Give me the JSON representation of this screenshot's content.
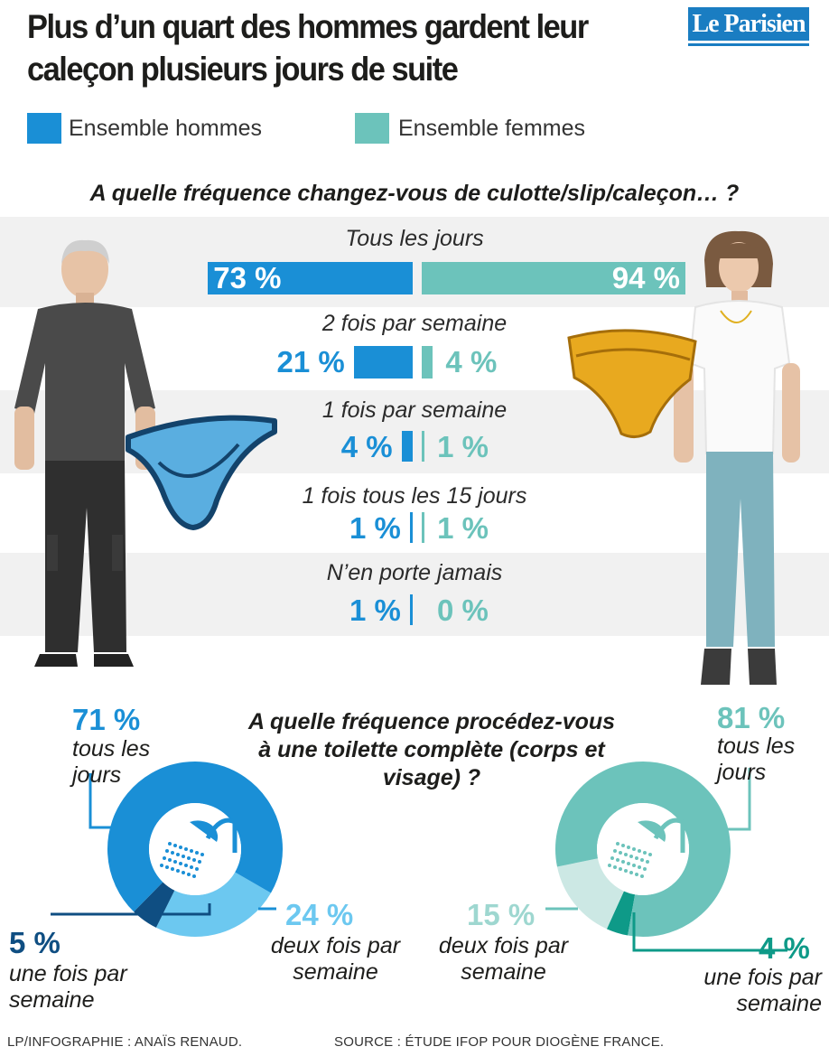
{
  "title": "Plus d’un quart des hommes gardent leur caleçon plusieurs jours de suite",
  "logo": "Le Parisien",
  "colors": {
    "men": "#1a8fd6",
    "women": "#6cc3bb",
    "men_dark": "#0f4e82",
    "men_light": "#6cc8f0",
    "women_light": "#cce8e4",
    "women_dark": "#0e9a88"
  },
  "legend": {
    "men": "Ensemble hommes",
    "women": "Ensemble femmes"
  },
  "illustrations": {
    "left": "man-figure-icon",
    "right": "woman-figure-icon",
    "brief": "briefs-icon",
    "panties": "panties-icon",
    "shower": "shower-icon"
  },
  "chart_data": [
    {
      "type": "bar",
      "title": "A quelle fréquence changez-vous de culotte/slip/caleçon… ?",
      "categories": [
        "Tous les jours",
        "2 fois par semaine",
        "1 fois par semaine",
        "1 fois tous les 15 jours",
        "N’en porte jamais"
      ],
      "series": [
        {
          "name": "Ensemble hommes",
          "values": [
            73,
            21,
            4,
            1,
            1
          ],
          "labels": [
            "73 %",
            "21 %",
            "4 %",
            "1 %",
            "1 %"
          ]
        },
        {
          "name": "Ensemble femmes",
          "values": [
            94,
            4,
            1,
            1,
            0
          ],
          "labels": [
            "94 %",
            "4 %",
            "1 %",
            "1 %",
            "0 %"
          ]
        }
      ]
    },
    {
      "type": "pie",
      "title": "A quelle fréquence procédez-vous à une toilette complète (corps et visage) ?",
      "series": [
        {
          "name": "Ensemble hommes",
          "values": [
            71,
            24,
            5
          ],
          "pcts": [
            "71 %",
            "24 %",
            "5 %"
          ],
          "labels": [
            "tous les jours",
            "deux fois par semaine",
            "une fois par semaine"
          ]
        },
        {
          "name": "Ensemble femmes",
          "values": [
            81,
            15,
            4
          ],
          "pcts": [
            "81 %",
            "15 %",
            "4 %"
          ],
          "labels": [
            "tous les jours",
            "deux fois par semaine",
            "une fois par semaine"
          ]
        }
      ]
    }
  ],
  "footer": {
    "credit": "LP/INFOGRAPHIE : ANAÏS RENAUD.",
    "source": "SOURCE : ÉTUDE IFOP POUR DIOGÈNE FRANCE."
  }
}
